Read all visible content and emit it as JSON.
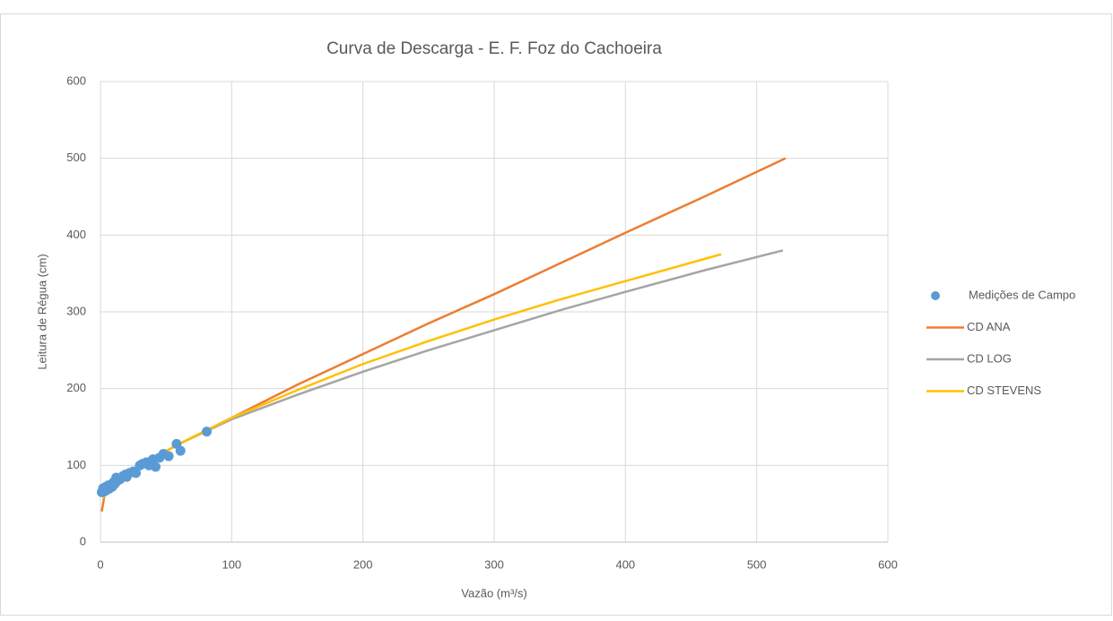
{
  "chart_data": {
    "type": "scatter",
    "title": "Curva de Descarga - E. F. Foz do Cachoeira",
    "xlabel": "Vazão (m³/s)",
    "ylabel": "Leitura de Régua (cm)",
    "xlim": [
      0,
      600
    ],
    "xticks": [
      0,
      100,
      200,
      300,
      400,
      500,
      600
    ],
    "ylim": [
      0,
      600
    ],
    "yticks": [
      0,
      100,
      200,
      300,
      400,
      500,
      600
    ],
    "grid": true,
    "legend": "right",
    "series": [
      {
        "name": "Medições de Campo",
        "color": "#5B9BD5",
        "mode": "markers",
        "x": [
          1,
          2,
          3,
          4,
          5,
          6,
          7,
          8,
          9,
          10,
          11,
          12,
          13,
          15,
          17,
          19,
          20,
          22,
          25,
          27,
          30,
          32,
          35,
          37,
          40,
          42,
          45,
          48,
          52,
          58,
          61,
          81
        ],
        "values": [
          65,
          70,
          66,
          72,
          68,
          74,
          70,
          75,
          72,
          78,
          76,
          84,
          80,
          82,
          86,
          88,
          85,
          90,
          92,
          90,
          100,
          102,
          104,
          100,
          108,
          98,
          110,
          115,
          112,
          128,
          119,
          144
        ]
      },
      {
        "name": "CD ANA",
        "color": "#ED7D31",
        "mode": "lines",
        "x": [
          1,
          3,
          10,
          30,
          60,
          100,
          150,
          200,
          250,
          300,
          350,
          400,
          460,
          522
        ],
        "values": [
          40,
          60,
          75,
          100,
          128,
          162,
          205,
          245,
          285,
          323,
          363,
          403,
          450,
          500
        ]
      },
      {
        "name": "CD LOG",
        "color": "#A5A5A5",
        "mode": "lines",
        "x": [
          2,
          10,
          30,
          60,
          100,
          150,
          200,
          250,
          300,
          350,
          400,
          460,
          520
        ],
        "values": [
          58,
          75,
          100,
          128,
          160,
          192,
          222,
          250,
          276,
          302,
          326,
          354,
          380
        ]
      },
      {
        "name": "CD STEVENS",
        "color": "#FFC000",
        "mode": "lines",
        "x": [
          2,
          10,
          30,
          60,
          100,
          150,
          200,
          250,
          300,
          350,
          400,
          473
        ],
        "values": [
          58,
          75,
          100,
          128,
          162,
          198,
          232,
          262,
          290,
          316,
          340,
          375
        ]
      }
    ]
  }
}
